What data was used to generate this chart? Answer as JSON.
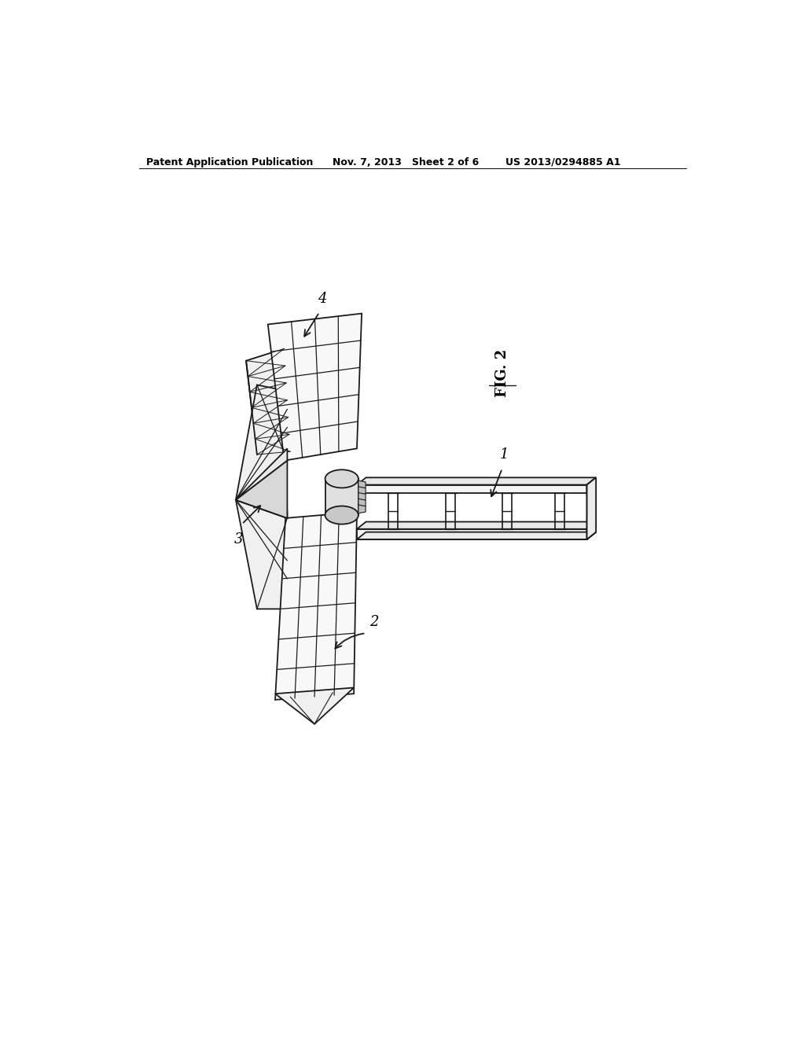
{
  "background_color": "#ffffff",
  "header_left": "Patent Application Publication",
  "header_mid": "Nov. 7, 2013   Sheet 2 of 6",
  "header_right": "US 2013/0294885 A1",
  "fig_label": "FIG. 2",
  "label_1": "1",
  "label_2": "2",
  "label_3": "3",
  "label_4": "4",
  "line_color": "#1a1a1a",
  "line_width": 1.3,
  "fig_width": 10.24,
  "fig_height": 13.2,
  "dpi": 100
}
